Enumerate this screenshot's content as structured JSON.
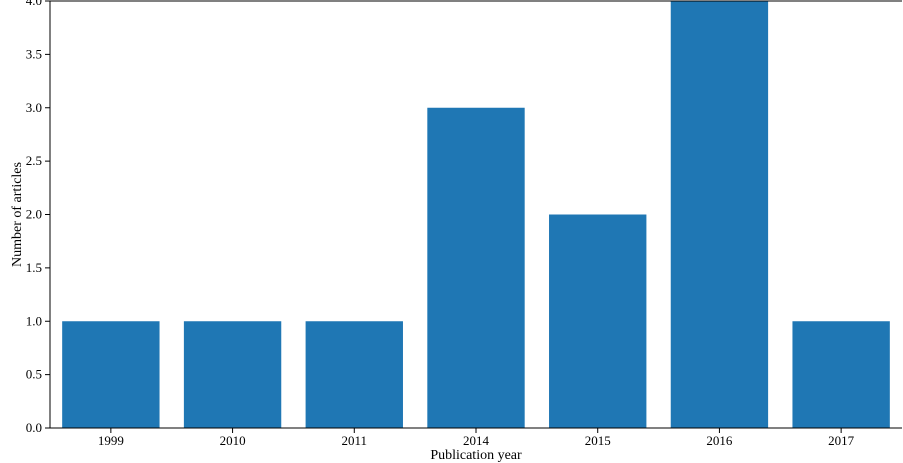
{
  "chart_data": {
    "type": "bar",
    "categories": [
      "1999",
      "2010",
      "2011",
      "2014",
      "2015",
      "2016",
      "2017"
    ],
    "values": [
      1,
      1,
      1,
      3,
      2,
      4,
      1
    ],
    "xlabel": "Publication year",
    "ylabel": "Number of articles",
    "ylim": [
      0,
      4
    ],
    "yticks": [
      "0.0",
      "0.5",
      "1.0",
      "1.5",
      "2.0",
      "2.5",
      "3.0",
      "3.5",
      "4.0"
    ],
    "bar_color": "#1f77b4",
    "grid": false,
    "legend": "none"
  }
}
